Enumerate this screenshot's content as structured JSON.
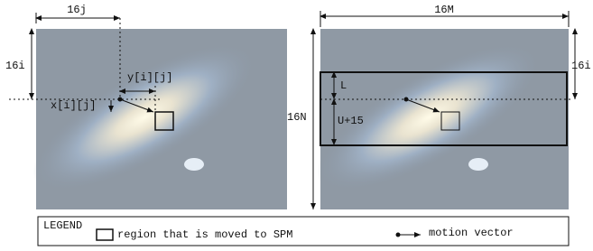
{
  "left_frame": {
    "width_label": "16j",
    "height_label": "16i",
    "y_offset_label": "y[i][j]",
    "x_offset_label": "x[i][j]"
  },
  "right_frame": {
    "width_label": "16M",
    "height_label": "16N",
    "row_label": "16i",
    "upper_label": "L",
    "lower_label": "U+15"
  },
  "legend": {
    "title": "LEGEND",
    "region_label": "region that is moved to SPM",
    "vector_label": "motion vector"
  }
}
